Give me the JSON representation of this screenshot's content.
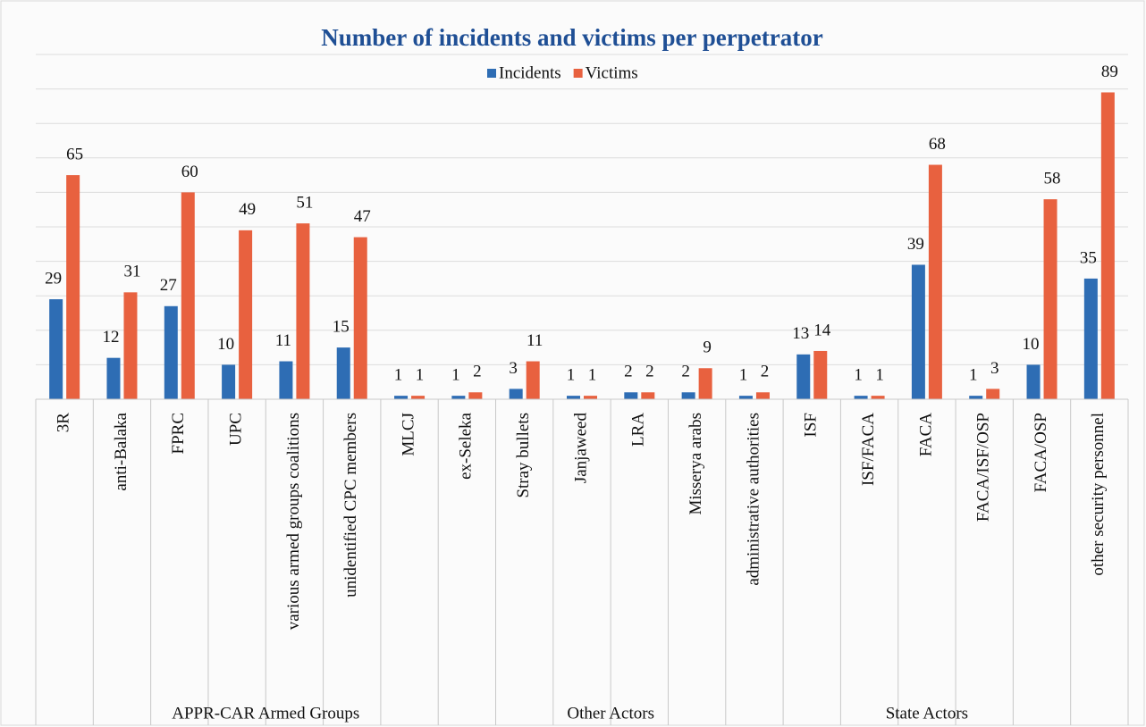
{
  "chart_data": {
    "type": "bar",
    "title": "Number of incidents and victims per perpetrator",
    "categories": [
      "3R",
      "anti-Balaka",
      "FPRC",
      "UPC",
      "various armed groups coalitions",
      "unidentified CPC members",
      "MLCJ",
      "ex-Seleka",
      "Stray bullets",
      "Janjaweed",
      "LRA",
      "Misserya arabs",
      "administrative authorities",
      "ISF",
      "ISF/FACA",
      "FACA",
      "FACA/ISF/OSP",
      "FACA/OSP",
      "other security personnel"
    ],
    "groups": [
      {
        "label": "APPR-CAR Armed Groups",
        "span": 8
      },
      {
        "label": "Other Actors",
        "span": 4
      },
      {
        "label": "State Actors",
        "span": 7
      }
    ],
    "series": [
      {
        "name": "Incidents",
        "color": "#2e6db4",
        "values": [
          29,
          12,
          27,
          10,
          11,
          15,
          1,
          1,
          3,
          1,
          2,
          2,
          1,
          13,
          1,
          39,
          1,
          10,
          35
        ]
      },
      {
        "name": "Victims",
        "color": "#e8613f",
        "values": [
          65,
          31,
          60,
          49,
          51,
          47,
          1,
          2,
          11,
          1,
          2,
          9,
          2,
          14,
          1,
          68,
          3,
          58,
          89
        ]
      }
    ],
    "ylim": [
      0,
      100
    ],
    "yticks": [
      0,
      10,
      20,
      30,
      40,
      50,
      60,
      70,
      80,
      90,
      100
    ],
    "grid": true,
    "legend": "top"
  }
}
